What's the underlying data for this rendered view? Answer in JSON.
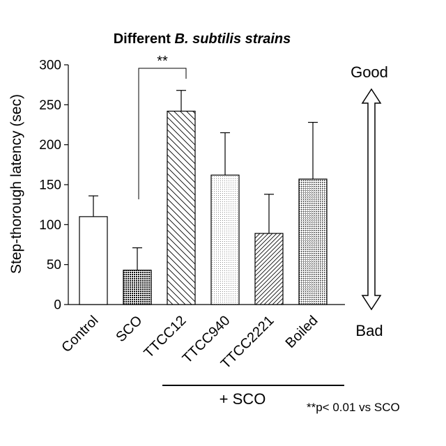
{
  "chart_data": {
    "type": "bar",
    "title_prefix": "Different ",
    "title_italic": "B. subtilis strains",
    "ylabel": "Step-thorough latency (sec)",
    "ylim": [
      0,
      300
    ],
    "yticks": [
      0,
      50,
      100,
      150,
      200,
      250,
      300
    ],
    "categories": [
      "Control",
      "SCO",
      "TTCC12",
      "TTCC940",
      "TTCC2221",
      "Boiled"
    ],
    "values": [
      110,
      43,
      242,
      162,
      89,
      157
    ],
    "errors": [
      26,
      28,
      26,
      53,
      49,
      71
    ],
    "patterns": [
      "none",
      "dense-cross",
      "diag-back",
      "dots",
      "diag-fwd",
      "fine-cross"
    ],
    "significance": {
      "from": "SCO",
      "to": "TTCC12",
      "label": "**"
    },
    "group_label": "+ SCO",
    "arrow_top": "Good",
    "arrow_bottom": "Bad",
    "note": "**p< 0.01 vs SCO"
  }
}
